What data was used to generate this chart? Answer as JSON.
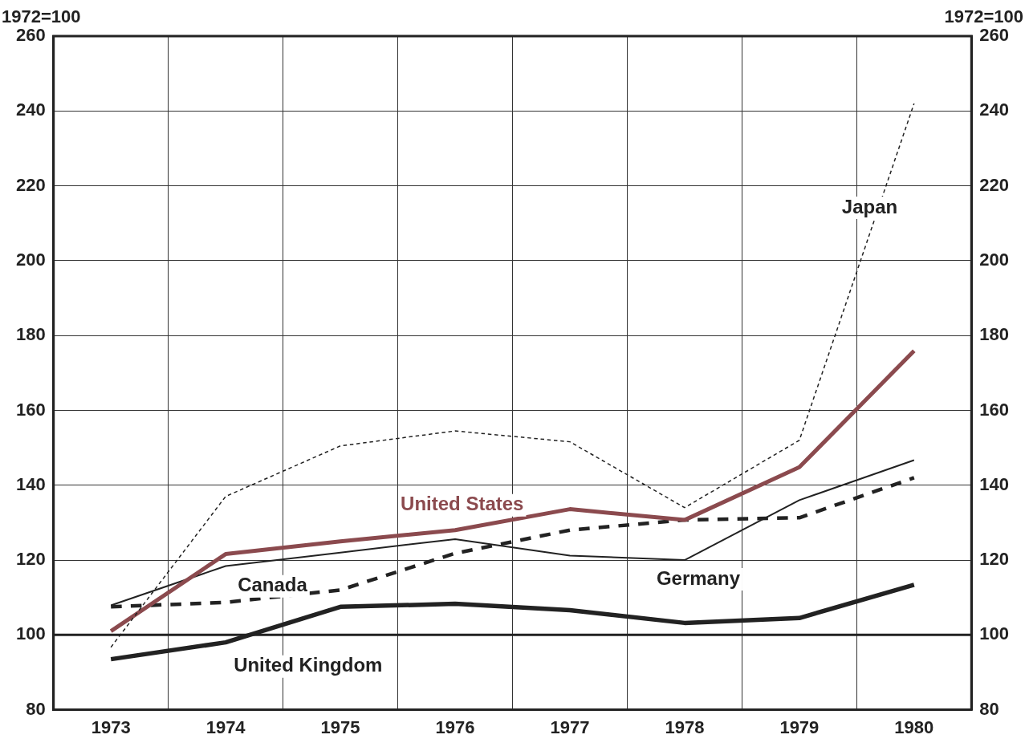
{
  "chart_data": {
    "type": "line",
    "ylabel": "1972=100",
    "y2label": "1972=100",
    "categories": [
      "1973",
      "1974",
      "1975",
      "1976",
      "1977",
      "1978",
      "1979",
      "1980"
    ],
    "series": [
      {
        "name": "Japan",
        "color": "#222222",
        "line_style": "dashed",
        "values": [
          96.7,
          137,
          150.5,
          154.5,
          151.6,
          134,
          152,
          242
        ]
      },
      {
        "name": "United States",
        "color": "#8b4a4e",
        "line_style": "solid",
        "values": [
          101,
          121.6,
          125,
          128,
          133.6,
          130.7,
          144.8,
          175.9
        ]
      },
      {
        "name": "Germany",
        "color": "#222222",
        "line_style": "solid",
        "values": [
          107.9,
          118.4,
          122,
          125.6,
          121.2,
          120,
          136,
          146.7
        ]
      },
      {
        "name": "Canada",
        "color": "#222222",
        "line_style": "dashed",
        "values": [
          107.5,
          108.7,
          112,
          121.8,
          128,
          130.7,
          131.3,
          142
        ]
      },
      {
        "name": "United Kingdom",
        "color": "#222222",
        "line_style": "solid",
        "values": [
          93.5,
          98,
          107.5,
          108.3,
          106.6,
          103.2,
          104.5,
          113.4
        ]
      }
    ],
    "ylim": [
      80,
      260
    ],
    "yticks": [
      80,
      100,
      120,
      140,
      160,
      180,
      200,
      220,
      240,
      260
    ],
    "y2lim": [
      80,
      260
    ],
    "y2ticks": [
      80,
      100,
      120,
      140,
      160,
      180,
      200,
      220,
      240,
      260
    ],
    "ref_lines": [
      {
        "axis": "y",
        "value": 100,
        "color": "#222222"
      }
    ],
    "grid": true,
    "legend": false,
    "marker": "none"
  }
}
